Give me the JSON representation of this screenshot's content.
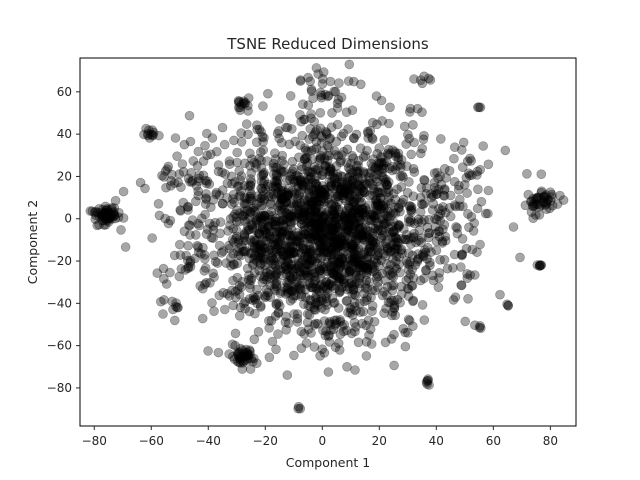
{
  "chart_data": {
    "type": "scatter",
    "title": "TSNE Reduced Dimensions",
    "xlabel": "Component 1",
    "ylabel": "Component 2",
    "xlim": [
      -85,
      89
    ],
    "ylim": [
      -98,
      76
    ],
    "xticks": [
      -80,
      -60,
      -40,
      -20,
      0,
      20,
      40,
      60,
      80
    ],
    "yticks": [
      -80,
      -60,
      -40,
      -20,
      0,
      20,
      40,
      60
    ],
    "grid": false,
    "legend": "none",
    "marker_color": "#000000",
    "marker_alpha": 0.35,
    "series": [
      {
        "x_mean": 0,
        "y_mean": -5,
        "x_std": 22,
        "y_std": 24,
        "n": 2200,
        "clusters": [
          {
            "x": -75,
            "y": 1,
            "n": 60,
            "spread": 2.5
          },
          {
            "x": 77,
            "y": 8,
            "n": 45,
            "spread": 2.5
          },
          {
            "x": -28,
            "y": -65,
            "n": 40,
            "spread": 2.5
          },
          {
            "x": -60,
            "y": 40,
            "n": 12,
            "spread": 1.5
          },
          {
            "x": -28,
            "y": 55,
            "n": 12,
            "spread": 2
          },
          {
            "x": 55,
            "y": 53,
            "n": 3,
            "spread": 0.3
          },
          {
            "x": 35,
            "y": 66,
            "n": 6,
            "spread": 1.5
          },
          {
            "x": 37,
            "y": -77,
            "n": 6,
            "spread": 0.8
          },
          {
            "x": 76,
            "y": -22,
            "n": 6,
            "spread": 0.8
          },
          {
            "x": 65,
            "y": -41,
            "n": 3,
            "spread": 0.3
          },
          {
            "x": -8,
            "y": -90,
            "n": 3,
            "spread": 0.6
          },
          {
            "x": 55,
            "y": -51,
            "n": 4,
            "spread": 0.8
          },
          {
            "x": -50,
            "y": -40,
            "n": 8,
            "spread": 3
          },
          {
            "x": -50,
            "y": -22,
            "n": 10,
            "spread": 3
          },
          {
            "x": 48,
            "y": 20,
            "n": 25,
            "spread": 6
          },
          {
            "x": -48,
            "y": 22,
            "n": 20,
            "spread": 6
          },
          {
            "x": 0,
            "y": 60,
            "n": 25,
            "spread": 5
          },
          {
            "x": 2,
            "y": -55,
            "n": 20,
            "spread": 5
          }
        ]
      }
    ]
  }
}
